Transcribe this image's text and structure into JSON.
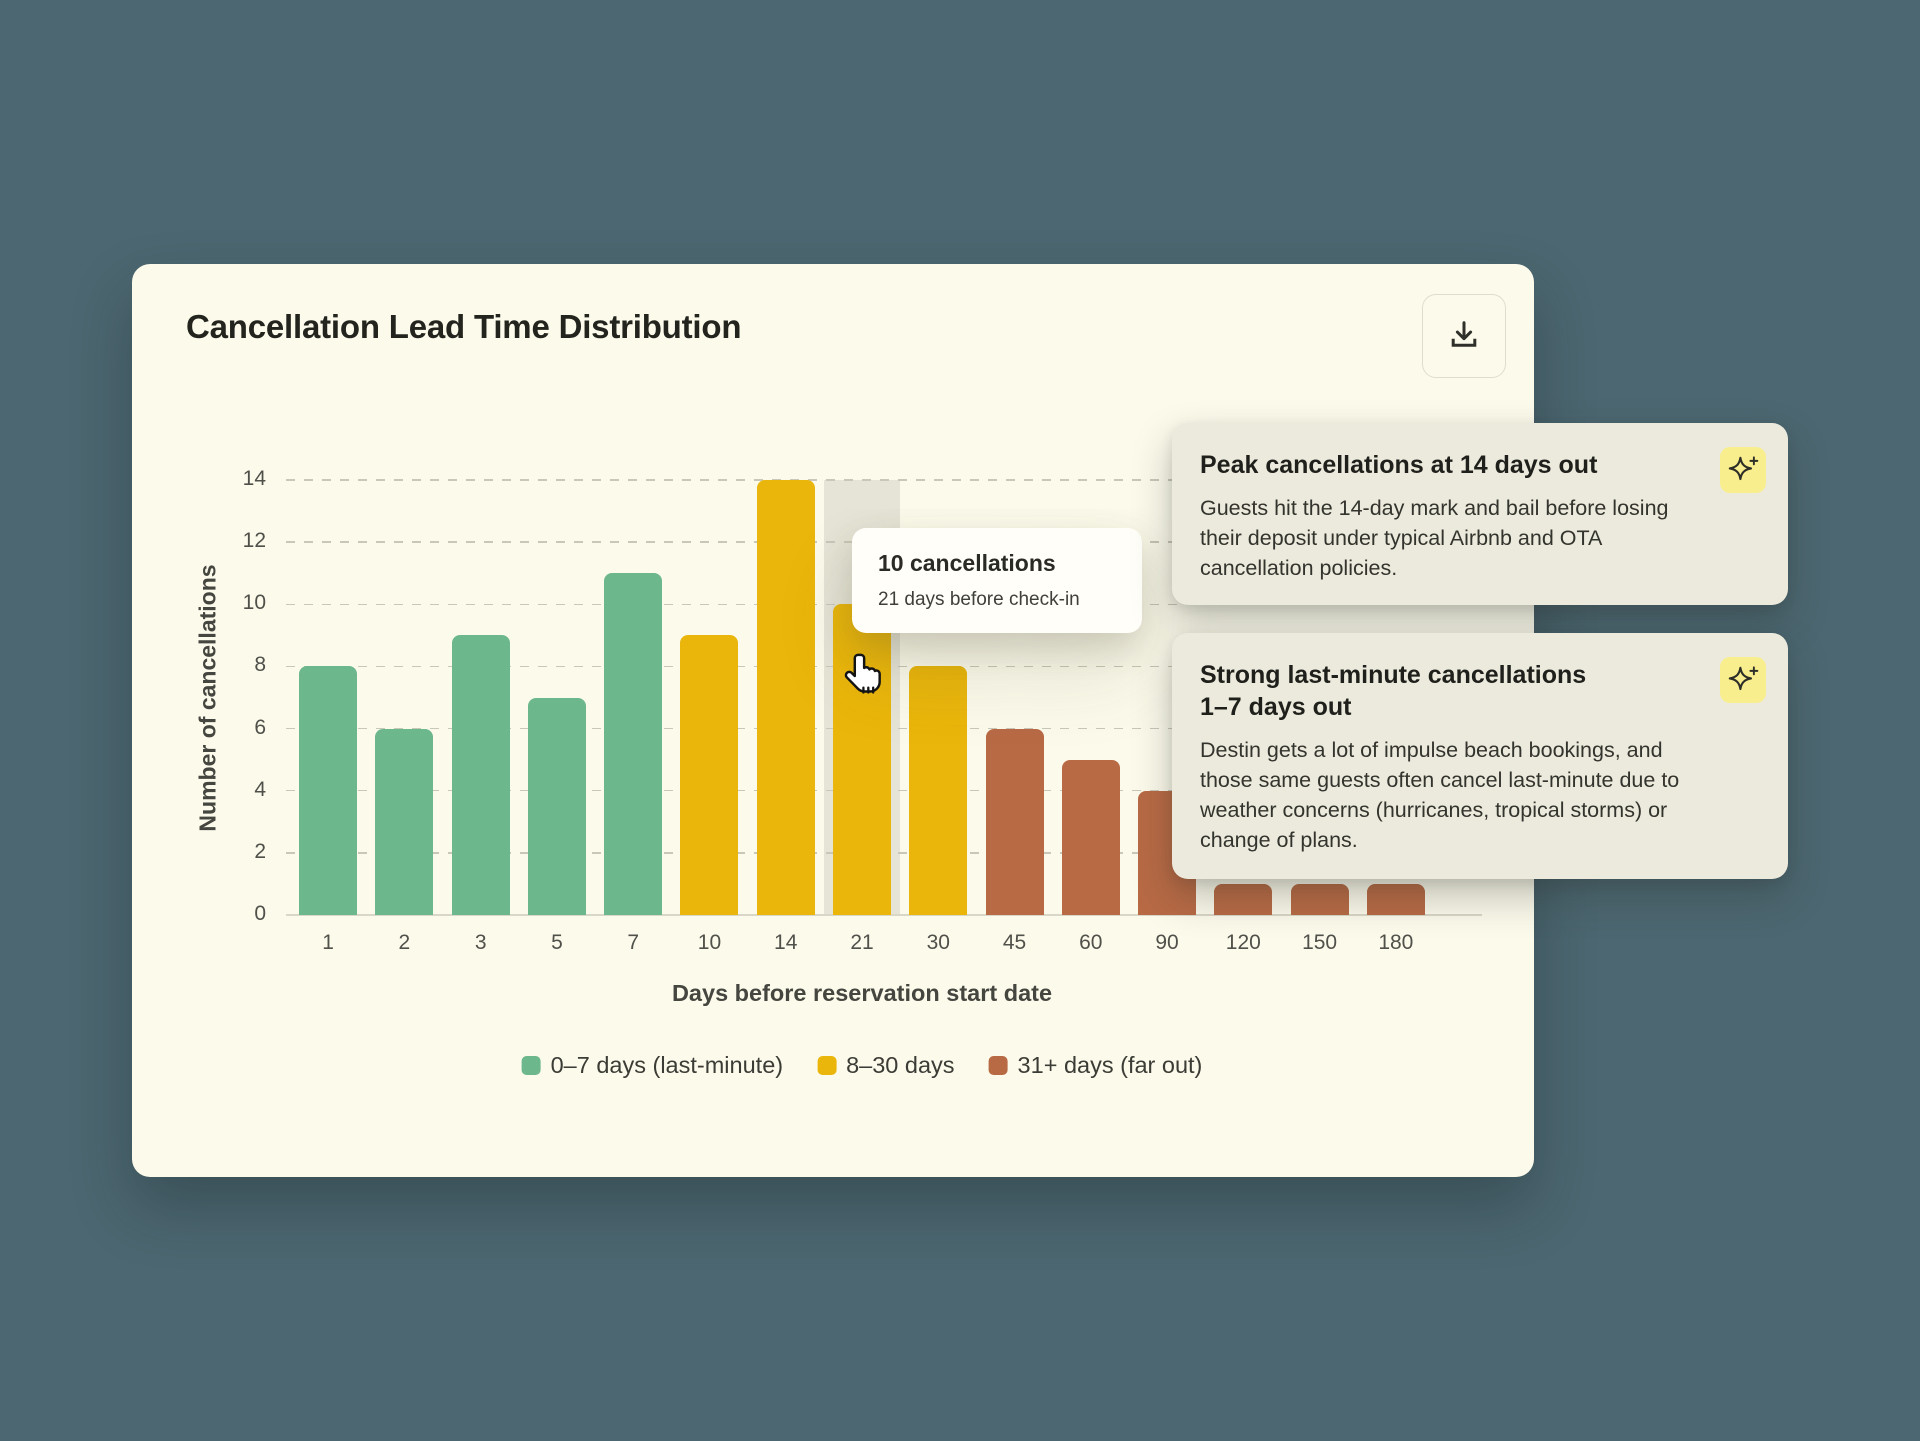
{
  "chart_data": {
    "type": "bar",
    "title": "Cancellation Lead Time Distribution",
    "xlabel": "Days before reservation start date",
    "ylabel": "Number of cancellations",
    "categories": [
      "1",
      "2",
      "3",
      "5",
      "7",
      "10",
      "14",
      "21",
      "30",
      "45",
      "60",
      "90",
      "120",
      "150",
      "180"
    ],
    "values": [
      8,
      6,
      9,
      7,
      11,
      9,
      14,
      10,
      8,
      6,
      5,
      4,
      1,
      1,
      1
    ],
    "groups": [
      "green",
      "green",
      "green",
      "green",
      "green",
      "yellow",
      "yellow",
      "yellow",
      "yellow",
      "rust",
      "rust",
      "rust",
      "rust",
      "rust",
      "rust"
    ],
    "series_colors": {
      "green": "#6CB78C",
      "yellow": "#EAB60B",
      "rust": "#B86A45"
    },
    "ylim": [
      0,
      14
    ],
    "yticks": [
      0,
      2,
      4,
      6,
      8,
      10,
      12,
      14
    ],
    "grid": "horizontal dashed",
    "legend_position": "bottom",
    "legend": [
      {
        "key": "green",
        "label": "0–7 days (last-minute)",
        "color": "#6CB78C"
      },
      {
        "key": "yellow",
        "label": "8–30 days",
        "color": "#EAB60B"
      },
      {
        "key": "rust",
        "label": "31+ days (far out)",
        "color": "#B86A45"
      }
    ],
    "hovered_category": "21"
  },
  "tooltip": {
    "title": "10 cancellations",
    "subtitle": "21 days before check-in"
  },
  "toolbar": {
    "download_icon": "download-icon"
  },
  "annotations": [
    {
      "icon": "sparkle-icon",
      "title": "Peak cancellations at 14 days out",
      "body": "Guests hit the 14-day mark and bail before losing\ntheir deposit under typical Airbnb and OTA\ncancellation policies."
    },
    {
      "icon": "sparkle-icon",
      "title": "Strong last-minute cancellations\n1–7 days out",
      "body": "Destin gets a lot of impulse beach bookings, and\nthose same guests often cancel last-minute due to\nweather concerns (hurricanes, tropical storms) or\nchange of plans."
    }
  ],
  "colors": {
    "page_background": "#4C6771",
    "card_background": "#FCFAEB",
    "annotation_background": "#ECEADD",
    "tooltip_background": "#FFFEF8",
    "hover_band": "#E6E4D6",
    "gridline": "#C9C7B8",
    "sparkle_badge": "#F9EE8D"
  }
}
